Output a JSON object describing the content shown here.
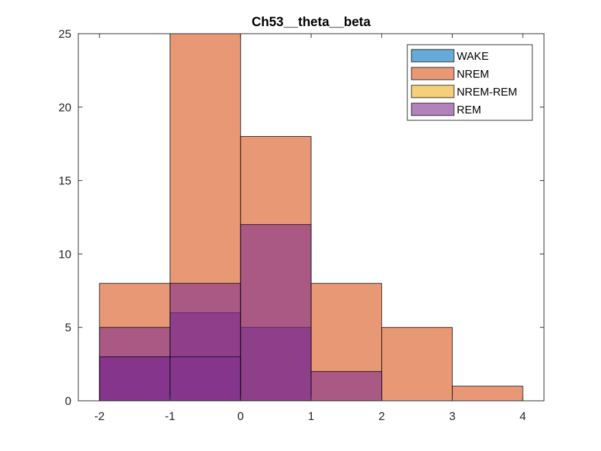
{
  "chart_data": {
    "type": "bar",
    "title": "Ch53__theta__beta",
    "xlabel": "",
    "ylabel": "",
    "xlim": [
      -2.3,
      4.3
    ],
    "ylim": [
      0,
      25
    ],
    "bin_edges": [
      -2,
      -1,
      0,
      1,
      2,
      3,
      4
    ],
    "x_ticks": [
      "-2",
      "-1",
      "0",
      "1",
      "2",
      "3",
      "4"
    ],
    "y_ticks": [
      "0",
      "5",
      "10",
      "15",
      "20",
      "25"
    ],
    "grid": false,
    "legend_position": "top-right",
    "face_alpha": 0.6,
    "series": [
      {
        "name": "WAKE",
        "color": "#0072BD",
        "values": [
          0,
          0,
          0,
          0,
          0,
          0
        ]
      },
      {
        "name": "NREM",
        "color": "#D95319",
        "values": [
          8,
          25,
          18,
          8,
          5,
          1
        ]
      },
      {
        "name": "NREM-REM",
        "color": "#EDB120",
        "values": [
          0,
          0,
          0,
          0,
          0,
          0
        ]
      },
      {
        "name": "REM",
        "color": "#7E2F8E",
        "values": [
          3,
          6,
          5,
          0,
          0,
          0
        ]
      },
      {
        "name": "",
        "color": "#7E2F8E",
        "values": [
          5,
          8,
          12,
          2,
          0,
          0
        ]
      },
      {
        "name": "",
        "color": "#7E2F8E",
        "values": [
          3,
          3,
          0,
          0,
          0,
          0
        ]
      }
    ]
  }
}
